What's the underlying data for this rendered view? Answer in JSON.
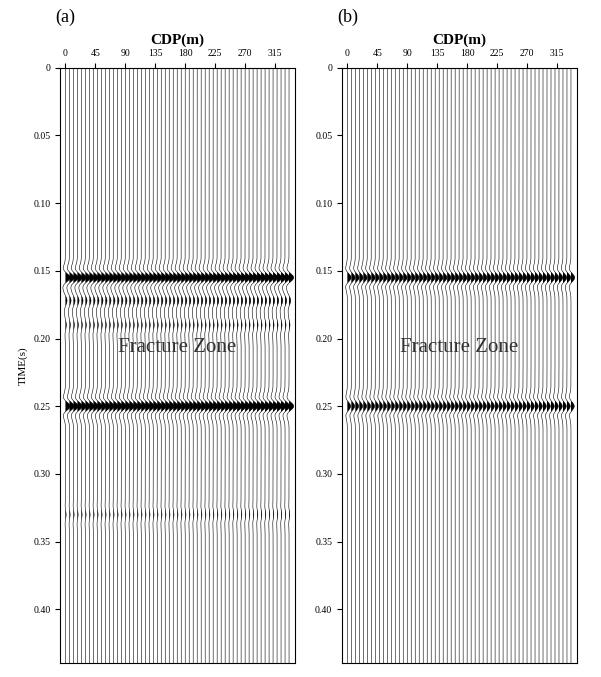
{
  "chart_data": [
    {
      "type": "wiggle",
      "panel": "(a)",
      "xlabel": "CDP(m)",
      "ylabel": "TIME(s)",
      "annotation": "Fracture Zone",
      "x": [
        0,
        6,
        12,
        18,
        24,
        30,
        36,
        42,
        48,
        54,
        60,
        66,
        72,
        78,
        84,
        90,
        96,
        102,
        108,
        114,
        120,
        126,
        132,
        138,
        144,
        150,
        156,
        162,
        168,
        174,
        180,
        186,
        192,
        198,
        204,
        210,
        216,
        222,
        228,
        234,
        240,
        246,
        252,
        258,
        264,
        270,
        276,
        282,
        288,
        294,
        300,
        306,
        312,
        318,
        324,
        330,
        336
      ],
      "xlim": [
        -8,
        345
      ],
      "xticks": [
        0,
        45,
        90,
        135,
        180,
        225,
        270,
        315
      ],
      "ylim": [
        0.44,
        0
      ],
      "yticks": [
        0,
        0.05,
        {
          "value": 0.1,
          "label": "0.10"
        },
        0.15,
        {
          "value": 0.2,
          "label": "0.20"
        },
        0.25,
        {
          "value": 0.3,
          "label": "0.30"
        },
        0.35,
        {
          "value": 0.4,
          "label": "0.40"
        }
      ],
      "reflectors": [
        {
          "time": 0.155,
          "amplitude": 1.0
        },
        {
          "time": 0.172,
          "amplitude": 0.35
        },
        {
          "time": 0.19,
          "amplitude": 0.2
        },
        {
          "time": 0.25,
          "amplitude": 1.0
        },
        {
          "time": 0.33,
          "amplitude": 0.15
        }
      ]
    },
    {
      "type": "wiggle",
      "panel": "(b)",
      "xlabel": "CDP(m)",
      "annotation": "Fracture Zone",
      "x": [
        0,
        6,
        12,
        18,
        24,
        30,
        36,
        42,
        48,
        54,
        60,
        66,
        72,
        78,
        84,
        90,
        96,
        102,
        108,
        114,
        120,
        126,
        132,
        138,
        144,
        150,
        156,
        162,
        168,
        174,
        180,
        186,
        192,
        198,
        204,
        210,
        216,
        222,
        228,
        234,
        240,
        246,
        252,
        258,
        264,
        270,
        276,
        282,
        288,
        294,
        300,
        306,
        312,
        318,
        324,
        330,
        336
      ],
      "xlim": [
        -8,
        345
      ],
      "xticks": [
        0,
        45,
        90,
        135,
        180,
        225,
        270,
        315
      ],
      "ylim": [
        0.44,
        0
      ],
      "yticks": [
        0,
        0.05,
        {
          "value": 0.1,
          "label": "0.10"
        },
        0.15,
        {
          "value": 0.2,
          "label": "0.20"
        },
        0.25,
        {
          "value": 0.3,
          "label": "0.30"
        },
        0.35,
        {
          "value": 0.4,
          "label": "0.40"
        }
      ],
      "reflectors": [
        {
          "time": 0.155,
          "amplitude": 0.8
        },
        {
          "time": 0.25,
          "amplitude": 0.7
        }
      ]
    }
  ]
}
